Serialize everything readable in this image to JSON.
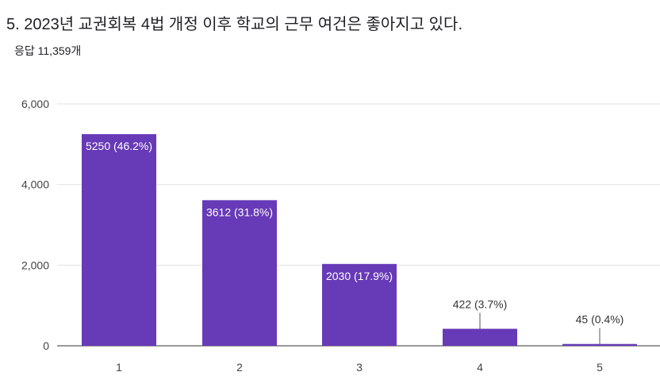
{
  "chart_data": {
    "type": "bar",
    "title": "5. 2023년 교권회복 4법 개정 이후 학교의 근무 여건은 좋아지고 있다.",
    "subtitle": "응답 11,359개",
    "categories": [
      "1",
      "2",
      "3",
      "4",
      "5"
    ],
    "values": [
      5250,
      3612,
      2030,
      422,
      45
    ],
    "data_labels": [
      "5250 (46.2%)",
      "3612 (31.8%)",
      "2030 (17.9%)",
      "422 (3.7%)",
      "45 (0.4%)"
    ],
    "ylim": [
      0,
      6000
    ],
    "y_ticks": [
      "0",
      "2,000",
      "4,000",
      "6,000"
    ],
    "y_tick_values": [
      0,
      2000,
      4000,
      6000
    ],
    "grid": true,
    "bar_color": "#673ab7",
    "xlabel": "",
    "ylabel": ""
  }
}
